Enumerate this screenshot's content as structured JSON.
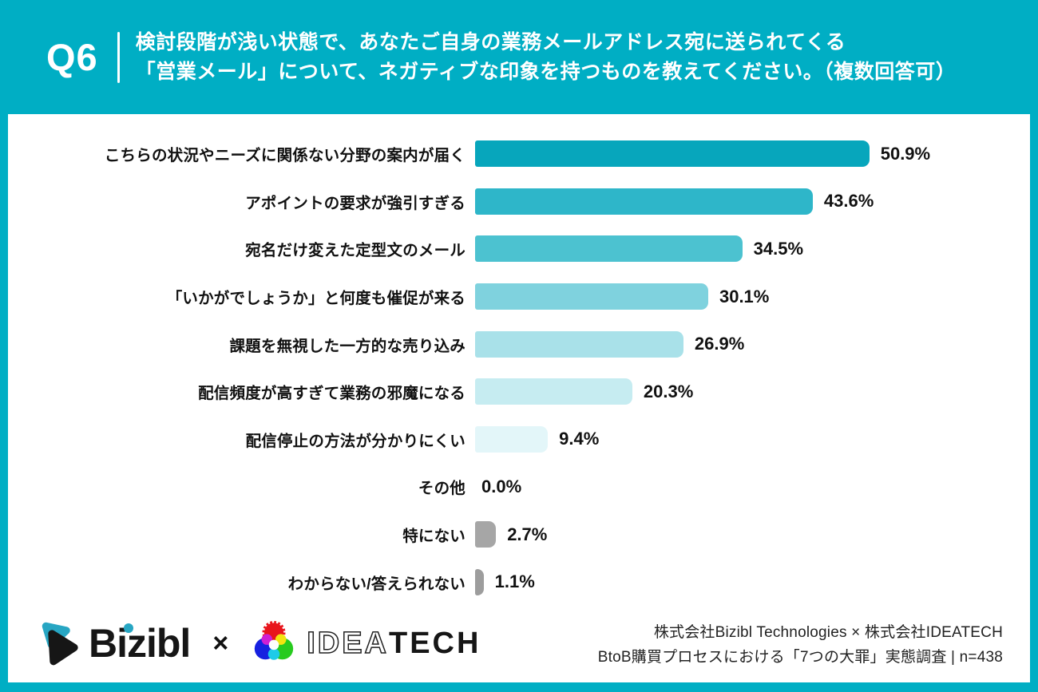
{
  "header": {
    "question_number": "Q6",
    "question_line1": "検討段階が浅い状態で、あなたご自身の業務メールアドレス宛に送られてくる",
    "question_line2": "「営業メール」について、ネガティブな印象を持つものを教えてください。（複数回答可）"
  },
  "chart_data": {
    "type": "bar",
    "orientation": "horizontal",
    "title": "検討段階が浅い状態で送られてくる「営業メール」について、ネガティブな印象を持つもの（複数回答可）",
    "unit": "%",
    "xlim": [
      0,
      55
    ],
    "grid": false,
    "legend": false,
    "categories": [
      "こちらの状況やニーズに関係ない分野の案内が届く",
      "アポイントの要求が強引すぎる",
      "宛名だけ変えた定型文のメール",
      "「いかがでしょうか」と何度も催促が来る",
      "課題を無視した一方的な売り込み",
      "配信頻度が高すぎて業務の邪魔になる",
      "配信停止の方法が分かりにくい",
      "その他",
      "特にない",
      "わからない/答えられない"
    ],
    "values": [
      50.9,
      43.6,
      34.5,
      30.1,
      26.9,
      20.3,
      9.4,
      0.0,
      2.7,
      1.1
    ],
    "value_labels": [
      "50.9%",
      "43.6%",
      "34.5%",
      "30.1%",
      "26.9%",
      "20.3%",
      "9.4%",
      "0.0%",
      "2.7%",
      "1.1%"
    ],
    "bar_colors": [
      "#07a6bc",
      "#2eb6c9",
      "#4cc2d0",
      "#7fd2de",
      "#a9e1e9",
      "#c6ecf1",
      "#e3f6f9",
      "#a6a6a6",
      "#a6a6a6",
      "#9d9d9d"
    ]
  },
  "footer": {
    "bizibl_logo_text": "Bizibl",
    "separator": "×",
    "ideatech_outline_text": "IDEA",
    "ideatech_solid_text": "TECH",
    "source_line1": "株式会社Bizibl Technologies × 株式会社IDEATECH",
    "source_line2": "BtoB購買プロセスにおける「7つの大罪」実態調査 | n=438"
  },
  "colors": {
    "background": "#00aec4",
    "panel": "#ffffff",
    "text_on_teal": "#ffffff",
    "text": "#111111"
  }
}
